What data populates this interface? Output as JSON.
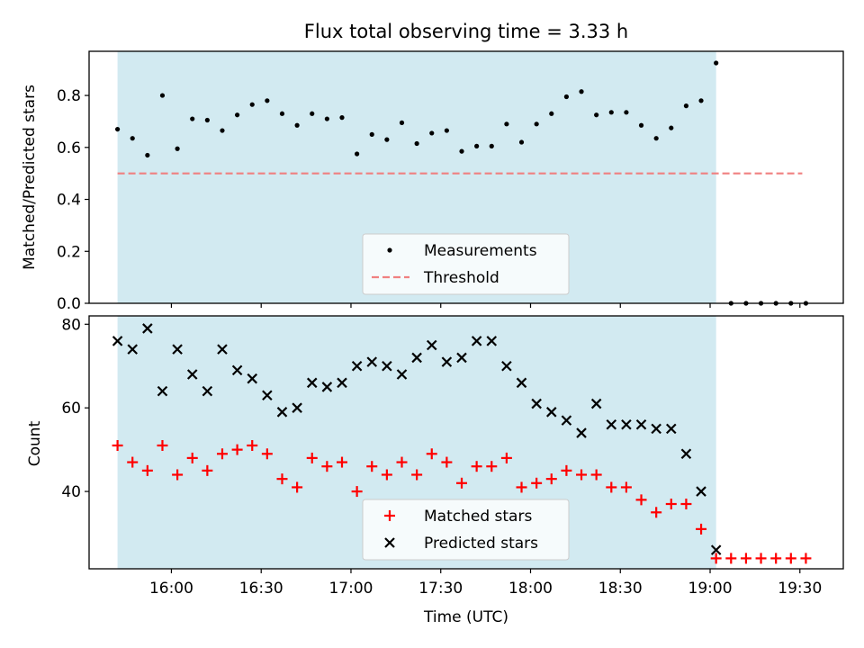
{
  "chart_data": {
    "title": "Flux total observing time = 3.33 h",
    "xlabel": "Time (UTC)",
    "x_ticks": [
      "16:00",
      "16:30",
      "17:00",
      "17:30",
      "18:00",
      "18:30",
      "19:00",
      "19:30"
    ],
    "time_range": [
      "15:47",
      "19:39"
    ],
    "shaded_span": {
      "start": "15:42",
      "end": "19:02",
      "color": "#add8e6"
    },
    "times": [
      "15:42",
      "15:47",
      "15:52",
      "15:57",
      "16:02",
      "16:07",
      "16:12",
      "16:17",
      "16:22",
      "16:27",
      "16:32",
      "16:37",
      "16:42",
      "16:47",
      "16:52",
      "16:57",
      "17:02",
      "17:07",
      "17:12",
      "17:17",
      "17:22",
      "17:27",
      "17:32",
      "17:37",
      "17:42",
      "17:47",
      "17:52",
      "17:57",
      "18:02",
      "18:07",
      "18:12",
      "18:17",
      "18:22",
      "18:27",
      "18:32",
      "18:37",
      "18:42",
      "18:47",
      "18:52",
      "18:57",
      "19:02",
      "19:07",
      "19:12",
      "19:17",
      "19:22",
      "19:27",
      "19:32"
    ],
    "panels": [
      {
        "type": "scatter",
        "ylabel": "Matched/Predicted stars",
        "ylim": [
          0,
          0.97
        ],
        "y_ticks": [
          0.0,
          0.2,
          0.4,
          0.6,
          0.8
        ],
        "y_tick_labels": [
          "0.0",
          "0.2",
          "0.4",
          "0.6",
          "0.8"
        ],
        "series": [
          {
            "name": "Measurements",
            "marker": "dot",
            "color": "#000000",
            "values": [
              0.67,
              0.635,
              0.57,
              0.8,
              0.595,
              0.71,
              0.705,
              0.665,
              0.725,
              0.765,
              0.78,
              0.73,
              0.685,
              0.73,
              0.71,
              0.715,
              0.575,
              0.65,
              0.63,
              0.695,
              0.615,
              0.655,
              0.665,
              0.585,
              0.605,
              0.605,
              0.69,
              0.62,
              0.69,
              0.73,
              0.795,
              0.815,
              0.725,
              0.735,
              0.735,
              0.685,
              0.635,
              0.675,
              0.76,
              0.78,
              0.925,
              0.0,
              0.0,
              0.0,
              0.0,
              0.0,
              0.0
            ]
          }
        ],
        "threshold": {
          "name": "Threshold",
          "value": 0.5,
          "color": "#f08080",
          "style": "dashed"
        },
        "legend_position": "bottom-center"
      },
      {
        "type": "scatter",
        "ylabel": "Count",
        "ylim": [
          21.5,
          82
        ],
        "y_ticks": [
          40,
          60,
          80
        ],
        "y_tick_labels": [
          "40",
          "60",
          "80"
        ],
        "series": [
          {
            "name": "Matched stars",
            "marker": "plus",
            "color": "#ff0000",
            "values": [
              51,
              47,
              45,
              51,
              44,
              48,
              45,
              49,
              50,
              51,
              49,
              43,
              41,
              48,
              46,
              47,
              40,
              46,
              44,
              47,
              44,
              49,
              47,
              42,
              46,
              46,
              48,
              41,
              42,
              43,
              45,
              44,
              44,
              41,
              41,
              38,
              35,
              37,
              37,
              31,
              24,
              24,
              24,
              24,
              24,
              24,
              24
            ]
          },
          {
            "name": "Predicted stars",
            "marker": "x",
            "color": "#000000",
            "values": [
              76,
              74,
              79,
              64,
              74,
              68,
              64,
              74,
              69,
              67,
              63,
              59,
              60,
              66,
              65,
              66,
              70,
              71,
              70,
              68,
              72,
              75,
              71,
              72,
              76,
              76,
              70,
              66,
              61,
              59,
              57,
              54,
              61,
              56,
              56,
              56,
              55,
              55,
              49,
              40,
              26,
              null,
              null,
              null,
              null,
              null,
              null
            ]
          }
        ],
        "legend_position": "bottom-center"
      }
    ]
  }
}
